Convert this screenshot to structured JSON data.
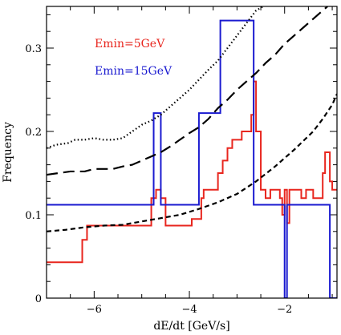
{
  "chart_data": {
    "type": "line",
    "xlabel": "dE/dt [GeV/s]",
    "ylabel": "Frequency",
    "xlim": [
      -7,
      -0.9
    ],
    "ylim": [
      0,
      0.35
    ],
    "x_ticks": [
      -6,
      -4,
      -2
    ],
    "x_tick_labels": [
      "−6",
      "−4",
      "−2"
    ],
    "y_ticks": [
      0,
      0.1,
      0.2,
      0.3
    ],
    "y_tick_labels": [
      "0",
      "0.1",
      "0.2",
      "0.3"
    ],
    "legend": [
      {
        "label": "Emin=5GeV",
        "color": "#e8261e"
      },
      {
        "label": "Emin=15GeV",
        "color": "#1a1ad0"
      }
    ],
    "series": [
      {
        "color": "#e8261e",
        "style": "solid",
        "points": [
          [
            -7,
            0.043
          ],
          [
            -6.25,
            0.043
          ],
          [
            -6.25,
            0.07
          ],
          [
            -6.15,
            0.07
          ],
          [
            -6.15,
            0.087
          ],
          [
            -4.8,
            0.087
          ],
          [
            -4.8,
            0.12
          ],
          [
            -4.7,
            0.12
          ],
          [
            -4.7,
            0.13
          ],
          [
            -4.6,
            0.13
          ],
          [
            -4.6,
            0.12
          ],
          [
            -4.5,
            0.12
          ],
          [
            -4.5,
            0.087
          ],
          [
            -3.95,
            0.087
          ],
          [
            -3.95,
            0.095
          ],
          [
            -3.75,
            0.095
          ],
          [
            -3.75,
            0.12
          ],
          [
            -3.7,
            0.12
          ],
          [
            -3.7,
            0.13
          ],
          [
            -3.4,
            0.13
          ],
          [
            -3.4,
            0.15
          ],
          [
            -3.3,
            0.15
          ],
          [
            -3.3,
            0.165
          ],
          [
            -3.2,
            0.165
          ],
          [
            -3.2,
            0.18
          ],
          [
            -3.1,
            0.18
          ],
          [
            -3.1,
            0.19
          ],
          [
            -2.9,
            0.19
          ],
          [
            -2.9,
            0.2
          ],
          [
            -2.7,
            0.2
          ],
          [
            -2.7,
            0.22
          ],
          [
            -2.65,
            0.22
          ],
          [
            -2.65,
            0.26
          ],
          [
            -2.6,
            0.26
          ],
          [
            -2.6,
            0.2
          ],
          [
            -2.5,
            0.2
          ],
          [
            -2.5,
            0.13
          ],
          [
            -2.4,
            0.13
          ],
          [
            -2.4,
            0.12
          ],
          [
            -2.3,
            0.12
          ],
          [
            -2.3,
            0.13
          ],
          [
            -2.1,
            0.13
          ],
          [
            -2.1,
            0.12
          ],
          [
            -2.05,
            0.12
          ],
          [
            -2.05,
            0.1
          ],
          [
            -2.0,
            0.1
          ],
          [
            -2.0,
            0.13
          ],
          [
            -1.95,
            0.13
          ],
          [
            -1.95,
            0.09
          ],
          [
            -1.9,
            0.09
          ],
          [
            -1.9,
            0.13
          ],
          [
            -1.65,
            0.13
          ],
          [
            -1.65,
            0.12
          ],
          [
            -1.55,
            0.12
          ],
          [
            -1.55,
            0.13
          ],
          [
            -1.4,
            0.13
          ],
          [
            -1.4,
            0.12
          ],
          [
            -1.2,
            0.12
          ],
          [
            -1.2,
            0.15
          ],
          [
            -1.15,
            0.15
          ],
          [
            -1.15,
            0.175
          ],
          [
            -1.05,
            0.175
          ],
          [
            -1.05,
            0.14
          ],
          [
            -1.0,
            0.14
          ],
          [
            -1.0,
            0.13
          ],
          [
            -0.9,
            0.13
          ]
        ]
      },
      {
        "color": "#1a1ad0",
        "style": "solid",
        "points": [
          [
            -7,
            0.112
          ],
          [
            -4.75,
            0.112
          ],
          [
            -4.75,
            0.222
          ],
          [
            -4.6,
            0.222
          ],
          [
            -4.6,
            0.112
          ],
          [
            -3.8,
            0.112
          ],
          [
            -3.8,
            0.222
          ],
          [
            -3.35,
            0.222
          ],
          [
            -3.35,
            0.333
          ],
          [
            -2.65,
            0.333
          ],
          [
            -2.65,
            0.112
          ],
          [
            -2.0,
            0.112
          ],
          [
            -2.0,
            0.0
          ],
          [
            -1.95,
            0.0
          ],
          [
            -1.95,
            0.112
          ],
          [
            -1.05,
            0.112
          ],
          [
            -1.05,
            0.0
          ],
          [
            -0.9,
            0.0
          ]
        ]
      },
      {
        "color": "#000000",
        "style": "dotted",
        "points": [
          [
            -7,
            0.18
          ],
          [
            -6.9,
            0.182
          ],
          [
            -6.8,
            0.184
          ],
          [
            -6.55,
            0.186
          ],
          [
            -6.4,
            0.19
          ],
          [
            -6.2,
            0.19
          ],
          [
            -6.0,
            0.192
          ],
          [
            -5.8,
            0.19
          ],
          [
            -5.6,
            0.19
          ],
          [
            -5.4,
            0.192
          ],
          [
            -5.2,
            0.2
          ],
          [
            -5.0,
            0.208
          ],
          [
            -4.8,
            0.213
          ],
          [
            -4.6,
            0.22
          ],
          [
            -4.4,
            0.23
          ],
          [
            -4.2,
            0.24
          ],
          [
            -4.0,
            0.25
          ],
          [
            -3.8,
            0.262
          ],
          [
            -3.6,
            0.274
          ],
          [
            -3.4,
            0.285
          ],
          [
            -3.2,
            0.3
          ],
          [
            -3.0,
            0.315
          ],
          [
            -2.8,
            0.33
          ],
          [
            -2.6,
            0.345
          ],
          [
            -2.45,
            0.35
          ]
        ]
      },
      {
        "color": "#000000",
        "style": "longdash",
        "points": [
          [
            -7,
            0.148
          ],
          [
            -6.5,
            0.152
          ],
          [
            -6.2,
            0.152
          ],
          [
            -6.0,
            0.155
          ],
          [
            -5.6,
            0.155
          ],
          [
            -5.4,
            0.158
          ],
          [
            -5.2,
            0.16
          ],
          [
            -5.0,
            0.165
          ],
          [
            -4.8,
            0.17
          ],
          [
            -4.6,
            0.175
          ],
          [
            -4.4,
            0.182
          ],
          [
            -4.2,
            0.19
          ],
          [
            -4.0,
            0.198
          ],
          [
            -3.8,
            0.205
          ],
          [
            -3.6,
            0.215
          ],
          [
            -3.4,
            0.228
          ],
          [
            -3.2,
            0.238
          ],
          [
            -3.0,
            0.25
          ],
          [
            -2.8,
            0.26
          ],
          [
            -2.6,
            0.27
          ],
          [
            -2.4,
            0.282
          ],
          [
            -2.2,
            0.292
          ],
          [
            -2.0,
            0.305
          ],
          [
            -1.8,
            0.315
          ],
          [
            -1.6,
            0.325
          ],
          [
            -1.4,
            0.335
          ],
          [
            -1.2,
            0.345
          ],
          [
            -1.1,
            0.35
          ]
        ]
      },
      {
        "color": "#000000",
        "style": "shortdash",
        "points": [
          [
            -7,
            0.08
          ],
          [
            -6.6,
            0.082
          ],
          [
            -6.2,
            0.085
          ],
          [
            -5.8,
            0.087
          ],
          [
            -5.4,
            0.088
          ],
          [
            -5.0,
            0.092
          ],
          [
            -4.6,
            0.096
          ],
          [
            -4.2,
            0.1
          ],
          [
            -3.8,
            0.107
          ],
          [
            -3.4,
            0.115
          ],
          [
            -3.0,
            0.125
          ],
          [
            -2.6,
            0.14
          ],
          [
            -2.2,
            0.158
          ],
          [
            -1.8,
            0.178
          ],
          [
            -1.4,
            0.2
          ],
          [
            -1.2,
            0.215
          ],
          [
            -1.0,
            0.232
          ],
          [
            -0.9,
            0.245
          ]
        ]
      }
    ]
  }
}
